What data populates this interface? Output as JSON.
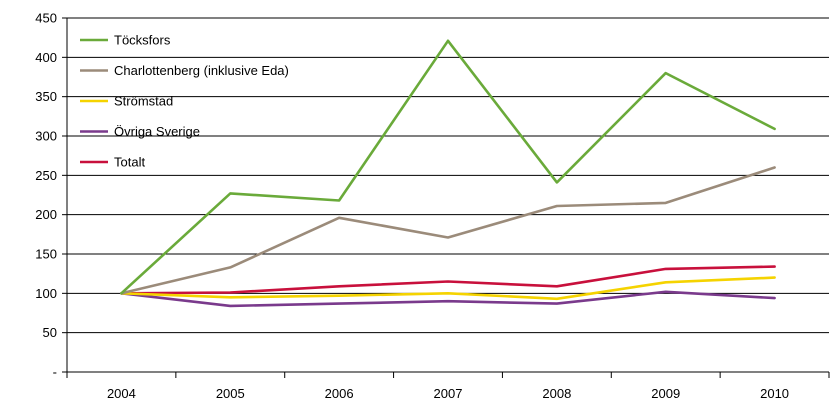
{
  "chart_data": {
    "type": "line",
    "title": "",
    "xlabel": "",
    "ylabel": "",
    "categories": [
      "2004",
      "2005",
      "2006",
      "2007",
      "2008",
      "2009",
      "2010"
    ],
    "ylim": [
      0,
      450
    ],
    "yticks": [
      0,
      50,
      100,
      150,
      200,
      250,
      300,
      350,
      400,
      450
    ],
    "ytick_labels": [
      "-",
      "50",
      "100",
      "150",
      "200",
      "250",
      "300",
      "350",
      "400",
      "450"
    ],
    "grid": "horizontal",
    "legend_position": "top-left",
    "series": [
      {
        "name": "Töcksfors",
        "color": "#6aaa3a",
        "values": [
          100,
          227,
          218,
          421,
          241,
          380,
          309
        ]
      },
      {
        "name": "Charlottenberg (inklusive Eda)",
        "color": "#9b8b7a",
        "values": [
          100,
          133,
          196,
          171,
          211,
          215,
          260
        ]
      },
      {
        "name": "Strömstad",
        "color": "#f5d300",
        "values": [
          100,
          95,
          97,
          100,
          93,
          114,
          120
        ]
      },
      {
        "name": "Övriga Sverige",
        "color": "#7a3a8c",
        "values": [
          100,
          84,
          87,
          90,
          87,
          102,
          94
        ]
      },
      {
        "name": "Totalt",
        "color": "#c8103c",
        "values": [
          100,
          101,
          109,
          115,
          109,
          131,
          134
        ]
      }
    ]
  }
}
